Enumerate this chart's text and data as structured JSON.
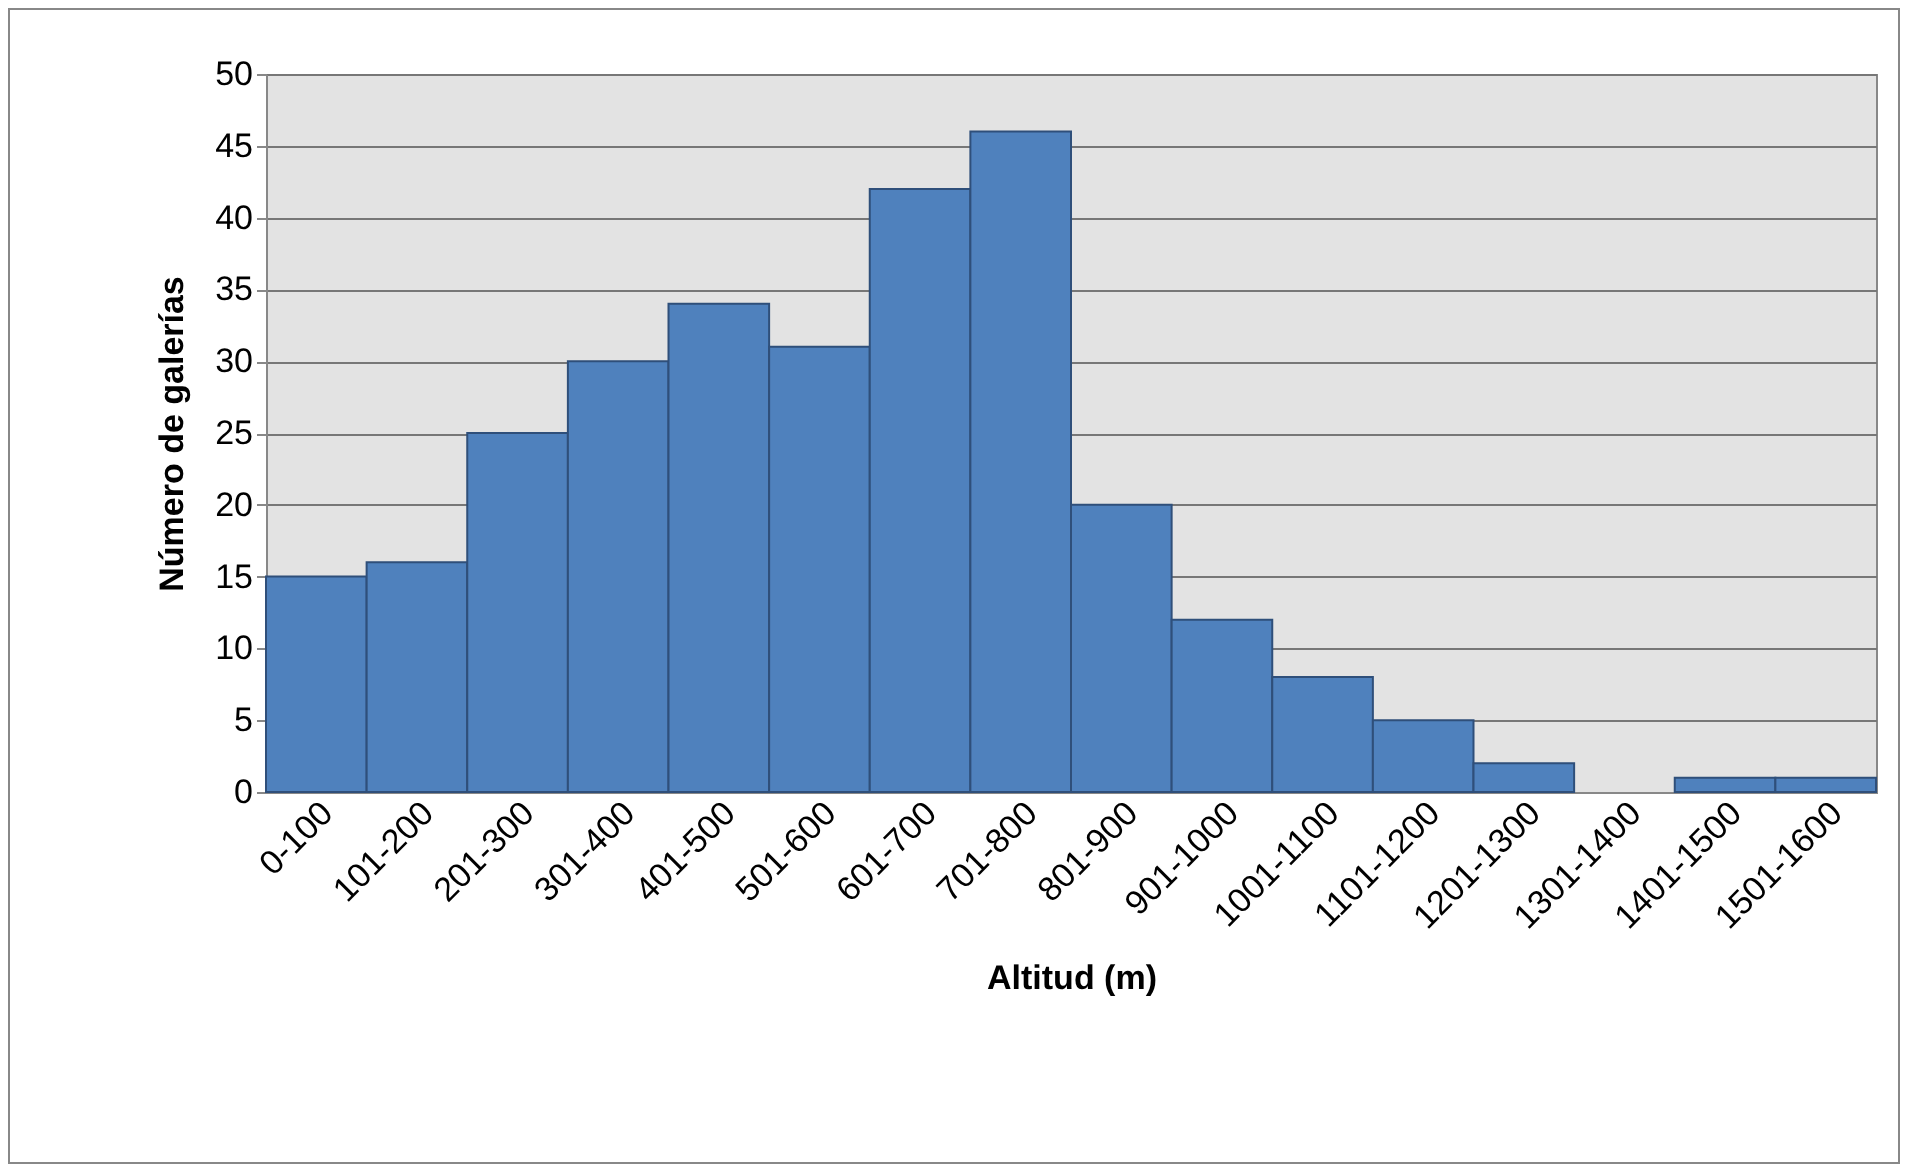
{
  "chart_data": {
    "type": "bar",
    "xlabel": "Altitud (m)",
    "ylabel": "Número de galerías",
    "categories": [
      "0-100",
      "101-200",
      "201-300",
      "301-400",
      "401-500",
      "501-600",
      "601-700",
      "701-800",
      "801-900",
      "901-1000",
      "1001-1100",
      "1101-1200",
      "1201-1300",
      "1301-1400",
      "1401-1500",
      "1501-1600"
    ],
    "values": [
      15,
      16,
      25,
      30,
      34,
      31,
      42,
      46,
      20,
      12,
      8,
      5,
      2,
      0,
      1,
      1
    ],
    "color": "#4f81bd",
    "ylim": [
      0,
      50
    ],
    "yticks": [
      0,
      5,
      10,
      15,
      20,
      25,
      30,
      35,
      40,
      45,
      50
    ],
    "grid": "y"
  }
}
